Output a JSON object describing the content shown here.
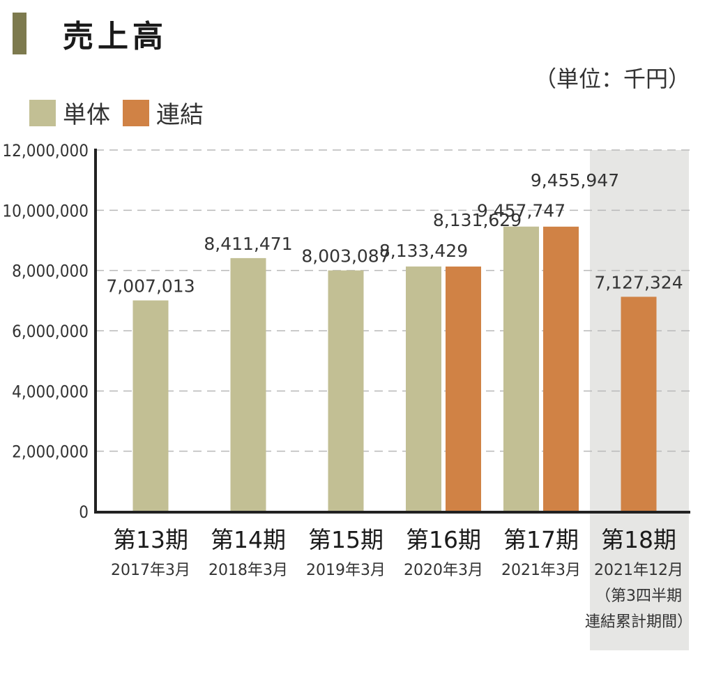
{
  "chart_data": {
    "type": "bar",
    "title": "売上高",
    "unit_note": "（単位：千円）",
    "legend_position": "top-left",
    "grid": true,
    "ylim": [
      0,
      12000000
    ],
    "yticks": [
      "0",
      "2,000,000",
      "4,000,000",
      "6,000,000",
      "8,000,000",
      "10,000,000",
      "12,000,000"
    ],
    "categories": [
      {
        "label": "第13期",
        "sub": [
          "2017年3月"
        ]
      },
      {
        "label": "第14期",
        "sub": [
          "2018年3月"
        ]
      },
      {
        "label": "第15期",
        "sub": [
          "2019年3月"
        ]
      },
      {
        "label": "第16期",
        "sub": [
          "2020年3月"
        ]
      },
      {
        "label": "第17期",
        "sub": [
          "2021年3月"
        ]
      },
      {
        "label": "第18期",
        "sub": [
          "2021年12月",
          "（第3四半期",
          "連結累計期間）"
        ],
        "highlighted": true
      }
    ],
    "series": [
      {
        "name": "単体",
        "color": "#c2bf94",
        "values": [
          7007013,
          8411471,
          8003087,
          8133429,
          9457747,
          null
        ],
        "labels": [
          "7,007,013",
          "8,411,471",
          "8,003,087",
          "8,133,429",
          "9,457,747",
          ""
        ]
      },
      {
        "name": "連結",
        "color": "#d08245",
        "values": [
          null,
          null,
          null,
          8131629,
          9455947,
          7127324
        ],
        "labels": [
          "",
          "",
          "",
          "8,131,629",
          "9,455,947",
          "7,127,324"
        ]
      }
    ]
  }
}
